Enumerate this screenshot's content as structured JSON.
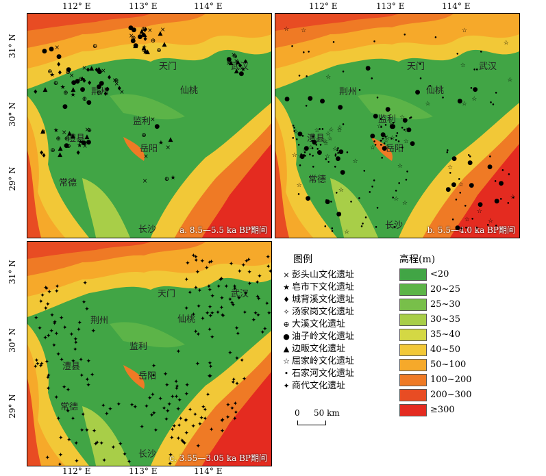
{
  "colors": {
    "low": "#41a545",
    "l2": "#5cb448",
    "l3": "#78bf4a",
    "l4": "#a8ce48",
    "l5": "#d4d844",
    "l6": "#f2c837",
    "l7": "#f6a92a",
    "l8": "#ef7a25",
    "l9": "#e84c23",
    "high": "#e42b20"
  },
  "ticks": {
    "x": [
      "112° E",
      "113° E",
      "114° E"
    ],
    "y": [
      "31° N",
      "30° N",
      "29° N"
    ]
  },
  "places": {
    "tianmen": "天门",
    "wuhan": "武汉",
    "jingzhou": "荆州",
    "xiantao": "仙桃",
    "jianli": "监利",
    "lixian": "澧县",
    "yueyang": "岳阳",
    "changde": "常德",
    "changsha": "长沙"
  },
  "panels": {
    "a": {
      "caption": "a. 8.5—5.5 ka BP期间"
    },
    "b": {
      "caption": "b. 5.5—4.0 ka BP期间"
    },
    "c": {
      "caption": "c. 3.55—3.05 ka BP期间"
    }
  },
  "legend": {
    "title": "图例",
    "items": [
      {
        "symbol": "×",
        "label": "彭头山文化遗址"
      },
      {
        "symbol": "★",
        "label": "皂市下文化遗址"
      },
      {
        "symbol": "♦",
        "label": "城背溪文化遗址"
      },
      {
        "symbol": "✧",
        "label": "汤家岗文化遗址"
      },
      {
        "symbol": "⊕",
        "label": "大溪文化遗址"
      },
      {
        "symbol": "●",
        "label": "油子岭文化遗址"
      },
      {
        "symbol": "▲",
        "label": "边畈文化遗址"
      },
      {
        "symbol": "☆",
        "label": "屈家岭文化遗址"
      },
      {
        "symbol": "•",
        "label": "石家河文化遗址"
      },
      {
        "symbol": "✦",
        "label": "商代文化遗址"
      }
    ]
  },
  "elevation": {
    "title": "高程(m)",
    "classes": [
      {
        "label": "<20",
        "color": "#41a545"
      },
      {
        "label": "20~25",
        "color": "#5cb448"
      },
      {
        "label": "25~30",
        "color": "#78bf4a"
      },
      {
        "label": "30~35",
        "color": "#a8ce48"
      },
      {
        "label": "35~40",
        "color": "#d4d844"
      },
      {
        "label": "40~50",
        "color": "#f2c837"
      },
      {
        "label": "50~100",
        "color": "#f6a92a"
      },
      {
        "label": "100~200",
        "color": "#ef7a25"
      },
      {
        "label": "200~300",
        "color": "#e84c23"
      },
      {
        "label": "≥300",
        "color": "#e42b20"
      }
    ]
  },
  "scale": {
    "zero": "0",
    "distance": "50 km"
  }
}
